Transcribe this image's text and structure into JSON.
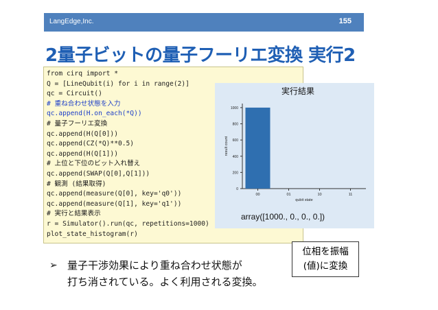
{
  "header": {
    "company": "LangEdge,Inc.",
    "page_number": "155",
    "bar_color": "#4f81bd"
  },
  "title": "2量子ビットの量子フーリエ変換 実行2",
  "code_lines": [
    {
      "text": "from cirq import *",
      "style": "normal"
    },
    {
      "text": "Q = [LineQubit(i) for i in range(2)]",
      "style": "normal"
    },
    {
      "text": "qc = Circuit()",
      "style": "normal"
    },
    {
      "text": "# 重ね合わせ状態を入力",
      "style": "blue"
    },
    {
      "text": "qc.append(H.on_each(*Q))",
      "style": "blue"
    },
    {
      "text": "# 量子フーリエ変換",
      "style": "comment"
    },
    {
      "text": "qc.append(H(Q[0]))",
      "style": "normal"
    },
    {
      "text": "qc.append(CZ(*Q)**0.5)",
      "style": "normal"
    },
    {
      "text": "qc.append(H(Q[1]))",
      "style": "normal"
    },
    {
      "text": "# 上位と下位のビット入れ替え",
      "style": "comment"
    },
    {
      "text": "qc.append(SWAP(Q[0],Q[1]))",
      "style": "normal"
    },
    {
      "text": "# 観測 (結果取得)",
      "style": "comment"
    },
    {
      "text": "qc.append(measure(Q[0], key='q0'))",
      "style": "normal"
    },
    {
      "text": "qc.append(measure(Q[1], key='q1'))",
      "style": "normal"
    },
    {
      "text": "# 実行と結果表示",
      "style": "comment"
    },
    {
      "text": "r = Simulator().run(qc, repetitions=1000)",
      "style": "normal"
    },
    {
      "text": "plot_state_histogram(r)",
      "style": "normal"
    }
  ],
  "result": {
    "title": "実行結果",
    "array_text": "array([1000.,    0.,    0.,    0.])"
  },
  "chart_data": {
    "type": "bar",
    "categories": [
      "00",
      "01",
      "10",
      "11"
    ],
    "values": [
      1000,
      0,
      0,
      0
    ],
    "ylim": [
      0,
      1050
    ],
    "yticks": [
      0,
      200,
      400,
      600,
      800,
      1000
    ],
    "xlabel": "qubit state",
    "ylabel": "result count",
    "bar_color": "#2f6fb0"
  },
  "callout": {
    "line1": "位相を振幅",
    "line2": "(値)に変換"
  },
  "bullet": {
    "marker": "➢",
    "line1": "量子干渉効果により重ね合わせ状態が",
    "line2": "打ち消されている。よく利用される変換。"
  }
}
